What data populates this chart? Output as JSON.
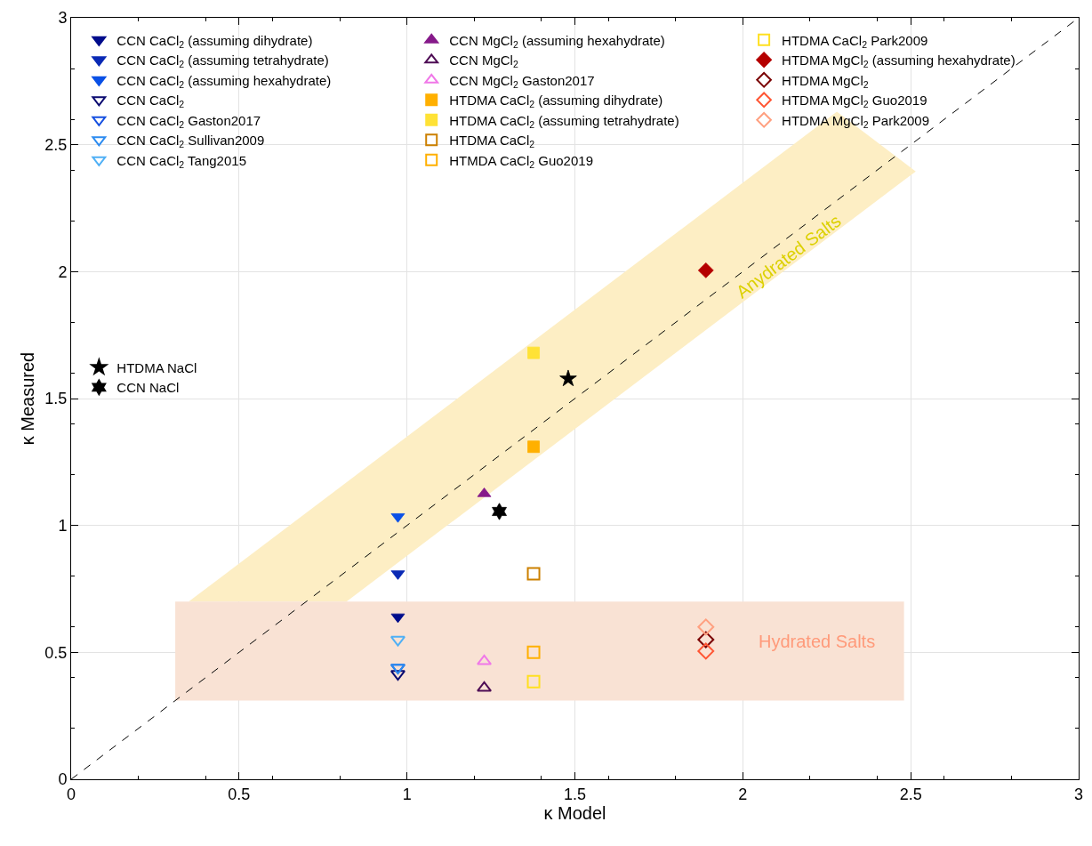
{
  "chart_data": {
    "type": "scatter",
    "xlabel": "κ Model",
    "ylabel": "κ Measured",
    "xlim": [
      0,
      3
    ],
    "ylim": [
      0,
      3
    ],
    "xticks": [
      0,
      0.5,
      1,
      1.5,
      2,
      2.5,
      3
    ],
    "yticks": [
      0,
      0.5,
      1,
      1.5,
      2,
      2.5,
      3
    ],
    "grid": true,
    "legend": "top left",
    "series": [
      {
        "name": "CCN CaCl$_{2}$ (assuming dihydrate)",
        "color": "#000c8c",
        "marker": "triangle-down",
        "x": [
          0.973
        ],
        "values": [
          0.64
        ]
      },
      {
        "name": "CCN CaCl$_{2}$ (assuming tetrahydrate)",
        "color": "#0a2ab5",
        "marker": "triangle-down",
        "x": [
          0.973
        ],
        "values": [
          0.81
        ]
      },
      {
        "name": "CCN CaCl$_{2}$ (assuming hexahydrate)",
        "color": "#0a50e6",
        "marker": "triangle-down",
        "x": [
          0.973
        ],
        "values": [
          1.035
        ]
      },
      {
        "name": "CCN CaCl$_{2}$",
        "color": "#0a0a70",
        "marker": "triangle-down-open",
        "x": [
          0.973
        ],
        "values": [
          0.415
        ]
      },
      {
        "name": "CCN CaCl$_{2}$ Gaston2017",
        "color": "#1650e0",
        "marker": "triangle-down-open",
        "x": [
          0.973
        ],
        "values": [
          0.44
        ]
      },
      {
        "name": "CCN CaCl$_{2}$ Sullivan2009",
        "color": "#2c8bf0",
        "marker": "triangle-down-open",
        "x": [
          0.973
        ],
        "values": [
          0.44
        ]
      },
      {
        "name": "CCN CaCl$_{2}$ Tang2015",
        "color": "#50b0f5",
        "marker": "triangle-down-open",
        "x": [
          0.973
        ],
        "values": [
          0.55
        ]
      },
      {
        "name": "CCN MgCl$_{2}$ (assuming hexahydrate)",
        "color": "#861a8a",
        "marker": "triangle-up",
        "x": [
          1.23
        ],
        "values": [
          1.125
        ]
      },
      {
        "name": "CCN MgCl$_{2}$",
        "color": "#4e0d55",
        "marker": "triangle-up-open",
        "x": [
          1.23
        ],
        "values": [
          0.36
        ]
      },
      {
        "name": "CCN MgCl$_{2}$ Gaston2017",
        "color": "#f078e8",
        "marker": "triangle-up-open",
        "x": [
          1.23
        ],
        "values": [
          0.465
        ]
      },
      {
        "name": "HTDMA CaCl$_{2}$ (assuming dihydrate)",
        "color": "#ffb000",
        "marker": "square",
        "x": [
          1.377
        ],
        "values": [
          1.31
        ]
      },
      {
        "name": "HTDMA CaCl$_{2}$ (assuming tetrahydrate)",
        "color": "#ffe236",
        "marker": "square",
        "x": [
          1.377
        ],
        "values": [
          1.68
        ]
      },
      {
        "name": "HTDMA CaCl$_{2}$",
        "color": "#cc8000",
        "marker": "square-open",
        "x": [
          1.377
        ],
        "values": [
          0.81
        ]
      },
      {
        "name": "HTMDA CaCl$_{2}$ Guo2019",
        "color": "#ffb000",
        "marker": "square-open",
        "x": [
          1.377
        ],
        "values": [
          0.5
        ]
      },
      {
        "name": "HTDMA CaCl$_{2}$ Park2009",
        "color": "#ffe020",
        "marker": "square-open",
        "x": [
          1.377
        ],
        "values": [
          0.385
        ]
      },
      {
        "name": "HTDMA MgCl$_{2}$ (assuming hexahydrate)",
        "color": "#b50000",
        "marker": "diamond",
        "x": [
          1.89
        ],
        "values": [
          2.005
        ]
      },
      {
        "name": "HTDMA MgCl$_{2}$",
        "color": "#7a0000",
        "marker": "diamond-open",
        "x": [
          1.89
        ],
        "values": [
          0.55
        ]
      },
      {
        "name": "HTDMA MgCl$_{2}$ Guo2019",
        "color": "#ff5533",
        "marker": "diamond-open",
        "x": [
          1.89
        ],
        "values": [
          0.505
        ]
      },
      {
        "name": "HTDMA MgCl$_{2}$ Park2009",
        "color": "#ffa080",
        "marker": "diamond-open",
        "x": [
          1.89
        ],
        "values": [
          0.6
        ]
      },
      {
        "name": "HTDMA NaCl",
        "color": "#000000",
        "marker": "star",
        "x": [
          1.48
        ],
        "values": [
          1.578
        ]
      },
      {
        "name": "CCN NaCl",
        "color": "#000000",
        "marker": "cross",
        "x": [
          1.275
        ],
        "values": [
          1.055
        ]
      },
      {
        "type": "area",
        "color": "#fdeec4",
        "x": [
          0.35,
          2.28,
          2.515,
          0.82
        ],
        "values": [
          0.7,
          2.63,
          2.395,
          0.7
        ]
      },
      {
        "type": "area",
        "color": "#f9e2d4",
        "x": [
          0.31,
          2.48,
          2.48,
          0.31
        ],
        "values": [
          0.31,
          0.31,
          0.7,
          0.7
        ]
      },
      {
        "type": "line",
        "color": "#000000",
        "line_style": "dashed",
        "x": [
          0,
          3
        ],
        "values": [
          0,
          3
        ]
      }
    ],
    "annotations": [
      "Anydrated Salts",
      "Hydrated Salts"
    ]
  }
}
